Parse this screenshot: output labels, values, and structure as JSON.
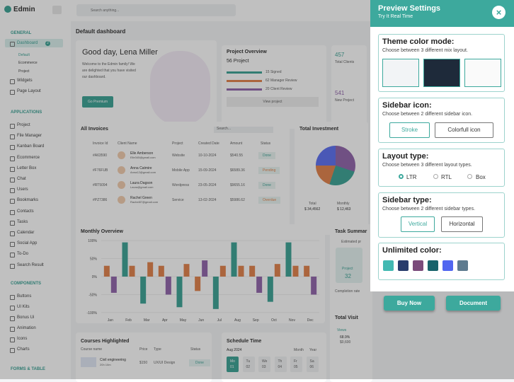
{
  "sidebar": {
    "brand": "Edmin",
    "sections": [
      {
        "title": "GENERAL",
        "items": [
          "Dashboard",
          "Default",
          "Ecommerce",
          "Project",
          "Widgets",
          "Page Layout"
        ]
      },
      {
        "title": "APPLICATIONS",
        "items": [
          "Project",
          "File Manager",
          "Kanban Board",
          "Ecommerce",
          "Letter Box",
          "Chat",
          "Users",
          "Bookmarks",
          "Contacts",
          "Tasks",
          "Calendar",
          "Social App",
          "To-Do",
          "Search Result"
        ]
      },
      {
        "title": "COMPONENTS",
        "items": [
          "Buttons",
          "UI Kits",
          "Bonus Ui",
          "Animation",
          "Icons",
          "Charts"
        ]
      },
      {
        "title": "FORMS & TABLE",
        "items": []
      }
    ],
    "badge": "2"
  },
  "topbar": {
    "search": "Search anything..."
  },
  "page_title": "Default dashboard",
  "welcome": {
    "greeting": "Good day, Lena Miller",
    "text": "Welcome to the Edmin family! We are delighted that you have visited our dashboard.",
    "button": "Go Premium"
  },
  "project_overview": {
    "title": "Project Overview",
    "count": "56 Project",
    "stats": [
      "15 Signed",
      "62 Manager Review",
      "20 Client Review"
    ],
    "button": "View project"
  },
  "clients": {
    "total": "457",
    "total_label": "Total Clients",
    "new": "541",
    "new_label": "New Project"
  },
  "invoices": {
    "title": "All Invoices",
    "search": "Search...",
    "headers": [
      "Invoice Id",
      "Client Name",
      "Project",
      "Created Date",
      "Amount",
      "Status"
    ],
    "rows": [
      [
        "#A63590",
        "Elle Amberson",
        "Elle345@gmail.com",
        "Website",
        "10-10-2024",
        "$540.55",
        "Done"
      ],
      [
        "#F76FUB",
        "Anna Catmire",
        "Anna12@gmail.com",
        "Mobile App",
        "15-09-2024",
        "$6589.36",
        "Pending"
      ],
      [
        "#RT5094",
        "Laura Dagson",
        "Laura@gmail.com",
        "Wordpress",
        "23-05-2024",
        "$9655.16",
        "Done"
      ],
      [
        "#PZ7386",
        "Rachel Green",
        "Rachel87@gmail.com",
        "Service",
        "13-02-2024",
        "$5986.62",
        "Overdue"
      ]
    ]
  },
  "investment": {
    "title": "Total Investment",
    "total_label": "Total",
    "total": "$ 34,4562",
    "monthly_label": "Monthly",
    "monthly": "$ 12,463"
  },
  "chart_data": {
    "type": "bar",
    "title": "Monthly Overview",
    "categories": [
      "Jan",
      "Feb",
      "Mar",
      "Apr",
      "May",
      "Jun",
      "Jul",
      "Aug",
      "Sep",
      "Oct",
      "Nov",
      "Dec"
    ],
    "series": [
      {
        "color": "#2f9c8e",
        "values": [
          null,
          95,
          -75,
          null,
          -85,
          null,
          -90,
          95,
          null,
          -70,
          95,
          null
        ]
      },
      {
        "color": "#e07a3f",
        "values": [
          30,
          30,
          40,
          30,
          35,
          -40,
          30,
          30,
          30,
          35,
          30,
          30
        ]
      },
      {
        "color": "#8a5aa6",
        "values": [
          -45,
          null,
          null,
          -50,
          null,
          45,
          null,
          null,
          -45,
          null,
          null,
          -50
        ]
      }
    ],
    "ylim": [
      -110,
      110
    ],
    "yticks": [
      {
        "value": 100,
        "label": "100%"
      },
      {
        "value": 50,
        "label": "50%"
      },
      {
        "value": 0,
        "label": "0%"
      },
      {
        "value": -50,
        "label": "-50%"
      },
      {
        "value": -100,
        "label": "-100%"
      }
    ]
  },
  "task_summary": {
    "title": "Task Summar",
    "estimated": "Estimated pr",
    "project_label": "Project",
    "project_value": "32",
    "completion": "Completion rate"
  },
  "courses": {
    "title": "Courses Highlighted",
    "headers": [
      "Course name",
      "Price",
      "Type",
      "Status"
    ],
    "row": [
      "Civil engineering",
      "20h 10m",
      "$150",
      "UX/UI Design",
      "Done"
    ]
  },
  "schedule": {
    "title": "Schedule Time",
    "month": "Aug 2024",
    "tabs": [
      "Month",
      "Year"
    ],
    "days": [
      [
        "Mo",
        "01"
      ],
      [
        "Tu",
        "02"
      ],
      [
        "We",
        "03"
      ],
      [
        "Th",
        "04"
      ],
      [
        "Fr",
        "05"
      ],
      [
        "Sa",
        "06"
      ]
    ]
  },
  "visit": {
    "title": "Total Visit",
    "views": "Views",
    "percent": "68.9%",
    "amount": "$0,600"
  },
  "settings": {
    "title": "Preview Settings",
    "subtitle": "Try It Real Time",
    "theme": {
      "title": "Theme color mode:",
      "text": "Choose between 3 different mix layout."
    },
    "icon": {
      "title": "Sidebar icon:",
      "text": "Choose between 2 different sidebar icon.",
      "options": [
        "Stroke",
        "Colorfull icon"
      ]
    },
    "layout": {
      "title": "Layout type:",
      "text": "Choose between 3 different layout types.",
      "options": [
        "LTR",
        "RTL",
        "Box"
      ]
    },
    "sidebar_type": {
      "title": "Sidebar type:",
      "text": "Choose between 2 different sidebar types.",
      "options": [
        "Vertical",
        "Horizontal"
      ]
    },
    "colors": {
      "title": "Unlimited color:",
      "swatches": [
        "#43b9b2",
        "#283c6c",
        "#7b4b7b",
        "#18636b",
        "#5166f0",
        "#5e7b8f"
      ]
    },
    "buttons": [
      "Buy Now",
      "Document"
    ]
  }
}
